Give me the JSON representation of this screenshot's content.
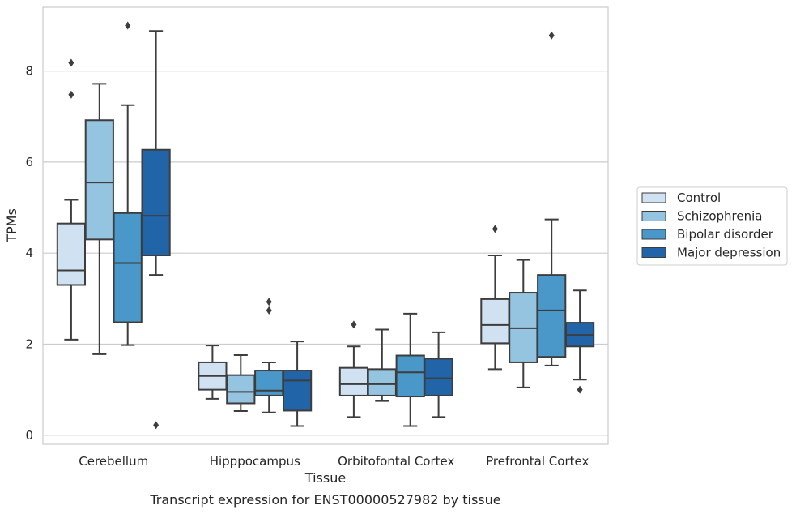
{
  "chart_data": {
    "type": "box",
    "title": "",
    "caption": "Transcript expression for ENST00000527982 by tissue",
    "xlabel": "Tissue",
    "ylabel": "TPMs",
    "ylim": [
      -0.2,
      9.4
    ],
    "yticks": [
      0,
      2,
      4,
      6,
      8
    ],
    "grid": "horizontal",
    "legend_position": "right",
    "categories": [
      "Cerebellum",
      "Hipppocampus",
      "Orbitofontal Cortex",
      "Prefrontal Cortex"
    ],
    "series": [
      {
        "name": "Control",
        "color": "#d0e1f2",
        "boxes": [
          {
            "whislo": 2.1,
            "q1": 3.3,
            "med": 3.62,
            "q3": 4.65,
            "whishi": 5.17,
            "fliers": [
              8.18,
              7.48
            ]
          },
          {
            "whislo": 0.8,
            "q1": 1.0,
            "med": 1.3,
            "q3": 1.6,
            "whishi": 1.97,
            "fliers": []
          },
          {
            "whislo": 0.4,
            "q1": 0.87,
            "med": 1.12,
            "q3": 1.48,
            "whishi": 1.95,
            "fliers": [
              2.43
            ]
          },
          {
            "whislo": 1.45,
            "q1": 2.02,
            "med": 2.42,
            "q3": 2.99,
            "whishi": 3.95,
            "fliers": [
              4.53
            ]
          }
        ]
      },
      {
        "name": "Schizophrenia",
        "color": "#94c4df",
        "boxes": [
          {
            "whislo": 1.78,
            "q1": 4.3,
            "med": 5.55,
            "q3": 6.92,
            "whishi": 7.72,
            "fliers": []
          },
          {
            "whislo": 0.53,
            "q1": 0.7,
            "med": 0.95,
            "q3": 1.32,
            "whishi": 1.76,
            "fliers": []
          },
          {
            "whislo": 0.75,
            "q1": 0.87,
            "med": 1.12,
            "q3": 1.45,
            "whishi": 2.32,
            "fliers": []
          },
          {
            "whislo": 1.05,
            "q1": 1.6,
            "med": 2.35,
            "q3": 3.13,
            "whishi": 3.85,
            "fliers": []
          }
        ]
      },
      {
        "name": "Bipolar disorder",
        "color": "#4a98c9",
        "boxes": [
          {
            "whislo": 1.98,
            "q1": 2.48,
            "med": 3.78,
            "q3": 4.88,
            "whishi": 7.25,
            "fliers": [
              9.0
            ]
          },
          {
            "whislo": 0.5,
            "q1": 0.87,
            "med": 0.98,
            "q3": 1.42,
            "whishi": 1.6,
            "fliers": [
              2.93,
              2.74
            ]
          },
          {
            "whislo": 0.2,
            "q1": 0.85,
            "med": 1.38,
            "q3": 1.75,
            "whishi": 2.67,
            "fliers": []
          },
          {
            "whislo": 1.53,
            "q1": 1.72,
            "med": 2.74,
            "q3": 3.52,
            "whishi": 4.74,
            "fliers": [
              8.78
            ]
          }
        ]
      },
      {
        "name": "Major depression",
        "color": "#2264a8",
        "boxes": [
          {
            "whislo": 3.52,
            "q1": 3.95,
            "med": 4.82,
            "q3": 6.27,
            "whishi": 8.88,
            "fliers": [
              0.22
            ]
          },
          {
            "whislo": 0.2,
            "q1": 0.54,
            "med": 1.2,
            "q3": 1.42,
            "whishi": 2.06,
            "fliers": []
          },
          {
            "whislo": 0.4,
            "q1": 0.87,
            "med": 1.25,
            "q3": 1.68,
            "whishi": 2.26,
            "fliers": []
          },
          {
            "whislo": 1.22,
            "q1": 1.95,
            "med": 2.2,
            "q3": 2.47,
            "whishi": 3.18,
            "fliers": [
              1.0
            ]
          }
        ]
      }
    ]
  }
}
